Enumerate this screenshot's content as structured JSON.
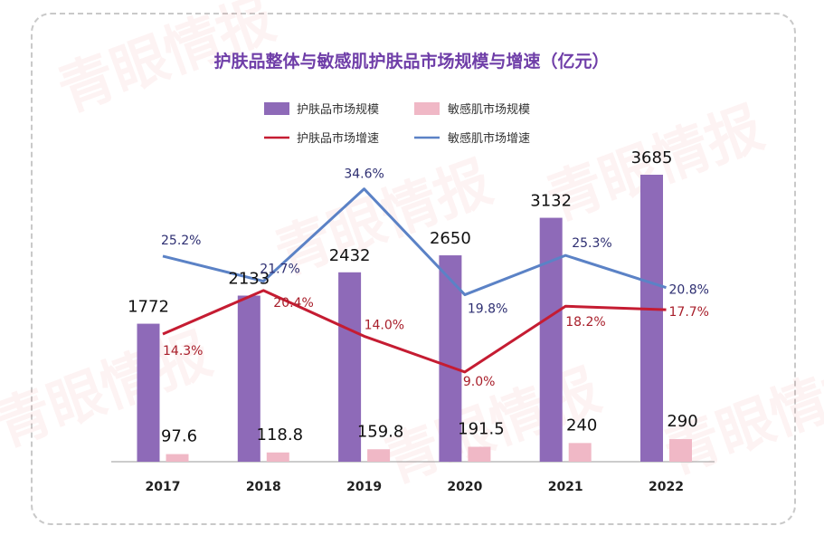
{
  "watermark": "青眼情报",
  "colors": {
    "title": "#6f3ea8",
    "bar_total": "#8e6ab8",
    "bar_sensitive": "#f0b8c6",
    "line_total": "#c51c32",
    "line_sensitive": "#5b82c6",
    "label_total_growth": "#a81e2a",
    "label_sensitive_growth": "#2e2f72"
  },
  "chart_data": {
    "type": "bar",
    "title": "护肤品整体与敏感肌护肤品市场规模与增速（亿元）",
    "categories": [
      "2017",
      "2018",
      "2019",
      "2020",
      "2021",
      "2022"
    ],
    "legend_position": "top",
    "grid": false,
    "series": [
      {
        "name": "护肤品市场规模",
        "kind": "bar",
        "values": [
          1772,
          2133,
          2432,
          2650,
          3132,
          3685
        ],
        "labels": [
          "1772",
          "2133",
          "2432",
          "2650",
          "3132",
          "3685"
        ]
      },
      {
        "name": "敏感肌市场规模",
        "kind": "bar",
        "values": [
          97.6,
          118.8,
          159.8,
          191.5,
          240,
          290
        ],
        "labels": [
          "97.6",
          "118.8",
          "159.8",
          "191.5",
          "240",
          "290"
        ]
      },
      {
        "name": "护肤品市场增速",
        "kind": "line",
        "values": [
          14.3,
          20.4,
          14.0,
          9.0,
          18.2,
          17.7
        ],
        "labels": [
          "14.3%",
          "20.4%",
          "14.0%",
          "9.0%",
          "18.2%",
          "17.7%"
        ]
      },
      {
        "name": "敏感肌市场增速",
        "kind": "line",
        "values": [
          25.2,
          21.7,
          34.6,
          19.8,
          25.3,
          20.8
        ],
        "labels": [
          "25.2%",
          "21.7%",
          "34.6%",
          "19.8%",
          "25.3%",
          "20.8%"
        ]
      }
    ]
  }
}
